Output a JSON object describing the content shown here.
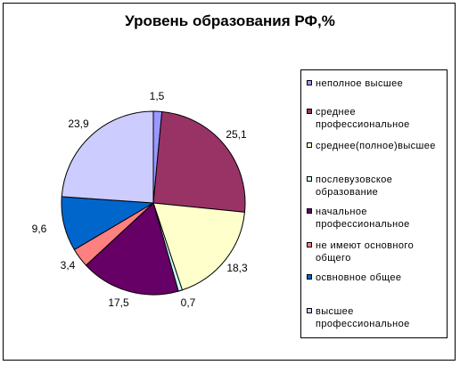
{
  "chart_data": {
    "type": "pie",
    "title": "Уровень образования РФ,%",
    "legend_position": "right",
    "series": [
      {
        "name": "неполное высшее",
        "value": 1.5,
        "label": "1,5",
        "color": "#9999ff"
      },
      {
        "name": "среднее профессиональное",
        "value": 25.1,
        "label": "25,1",
        "color": "#993366"
      },
      {
        "name": "среднее(полное)высшее",
        "value": 18.3,
        "label": "18,3",
        "color": "#ffffcc"
      },
      {
        "name": "послевузовское образование",
        "value": 0.7,
        "label": "0,7",
        "color": "#ccffff"
      },
      {
        "name": "начальное профессиональное",
        "value": 17.5,
        "label": "17,5",
        "color": "#660066"
      },
      {
        "name": "не имеют основного общего",
        "value": 3.4,
        "label": "3,4",
        "color": "#ff8080"
      },
      {
        "name": "освновное общее",
        "value": 9.6,
        "label": "9,6",
        "color": "#0066cc"
      },
      {
        "name": "высшее профессиональное",
        "value": 23.9,
        "label": "23,9",
        "color": "#ccccff"
      }
    ]
  }
}
